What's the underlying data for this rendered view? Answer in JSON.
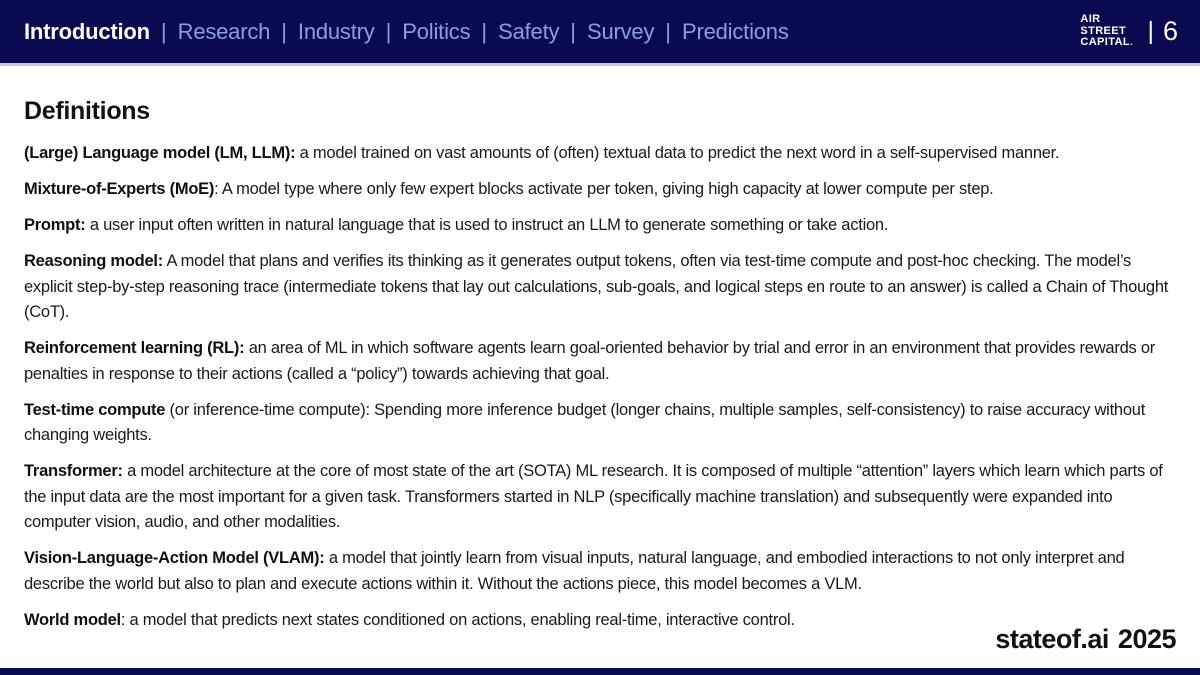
{
  "header": {
    "separator": "|",
    "nav": [
      {
        "label": "Introduction",
        "active": true
      },
      {
        "label": "Research",
        "active": false
      },
      {
        "label": "Industry",
        "active": false
      },
      {
        "label": "Politics",
        "active": false
      },
      {
        "label": "Safety",
        "active": false
      },
      {
        "label": "Survey",
        "active": false
      },
      {
        "label": "Predictions",
        "active": false
      }
    ],
    "logo": {
      "line1": "AIR",
      "line2": "STREET",
      "line3": "CAPITAL",
      "dot": "."
    },
    "page_indicator": {
      "separator": "|",
      "number": "6"
    }
  },
  "content": {
    "title": "Definitions",
    "definitions": [
      {
        "term": "(Large) Language model (LM, LLM):",
        "text": " a model trained on vast amounts of (often) textual data to predict the next word in a self-supervised manner."
      },
      {
        "term": "Mixture-of-Experts (MoE)",
        "text": ": A model type where only few expert blocks activate per token, giving high capacity at lower compute per step."
      },
      {
        "term": "Prompt:",
        "text": " a user input often written in natural language that is used to instruct an LLM to generate something or take action."
      },
      {
        "term": "Reasoning model:",
        "text": " A model that plans and verifies its thinking as it generates output tokens, often via test-time compute and post-hoc checking. The model’s explicit step-by-step reasoning trace (intermediate tokens that lay out calculations, sub-goals, and logical steps en route to an answer) is called a Chain of Thought (CoT)."
      },
      {
        "term": "Reinforcement learning (RL):",
        "text": " an area of ML in which software agents learn goal-oriented behavior by trial and error in an environment that provides rewards or penalties in response to their actions (called a “policy”) towards achieving that goal."
      },
      {
        "term": "Test-time compute",
        "text": " (or inference-time compute): Spending more inference budget (longer chains, multiple samples, self-consistency) to raise accuracy without changing weights."
      },
      {
        "term": "Transformer:",
        "text": " a model architecture at the core of most state of the art (SOTA) ML research. It is composed of multiple “attention” layers which learn which parts of the input data are the most important for a given task. Transformers started in NLP (specifically machine translation) and subsequently were expanded into computer vision, audio, and other modalities."
      },
      {
        "term": "Vision-Language-Action Model (VLAM):",
        "text": " a model that jointly learn from visual inputs, natural language, and embodied interactions to not only interpret and describe the world but also to plan and execute actions within it. Without the actions piece, this model becomes a VLM."
      },
      {
        "term": "World model",
        "text": ": a model that predicts next states conditioned on actions, enabling real-time, interactive control."
      }
    ]
  },
  "footer": {
    "brand": "stateof.ai",
    "year": "2025"
  },
  "colors": {
    "header_bg": "#0A0A50",
    "nav_active": "#FFFFFF",
    "nav_inactive": "#8C9FDC",
    "header_border": "#C9C9D4",
    "logo_dot": "#E8A33D",
    "body_text": "#1A1A1A"
  }
}
